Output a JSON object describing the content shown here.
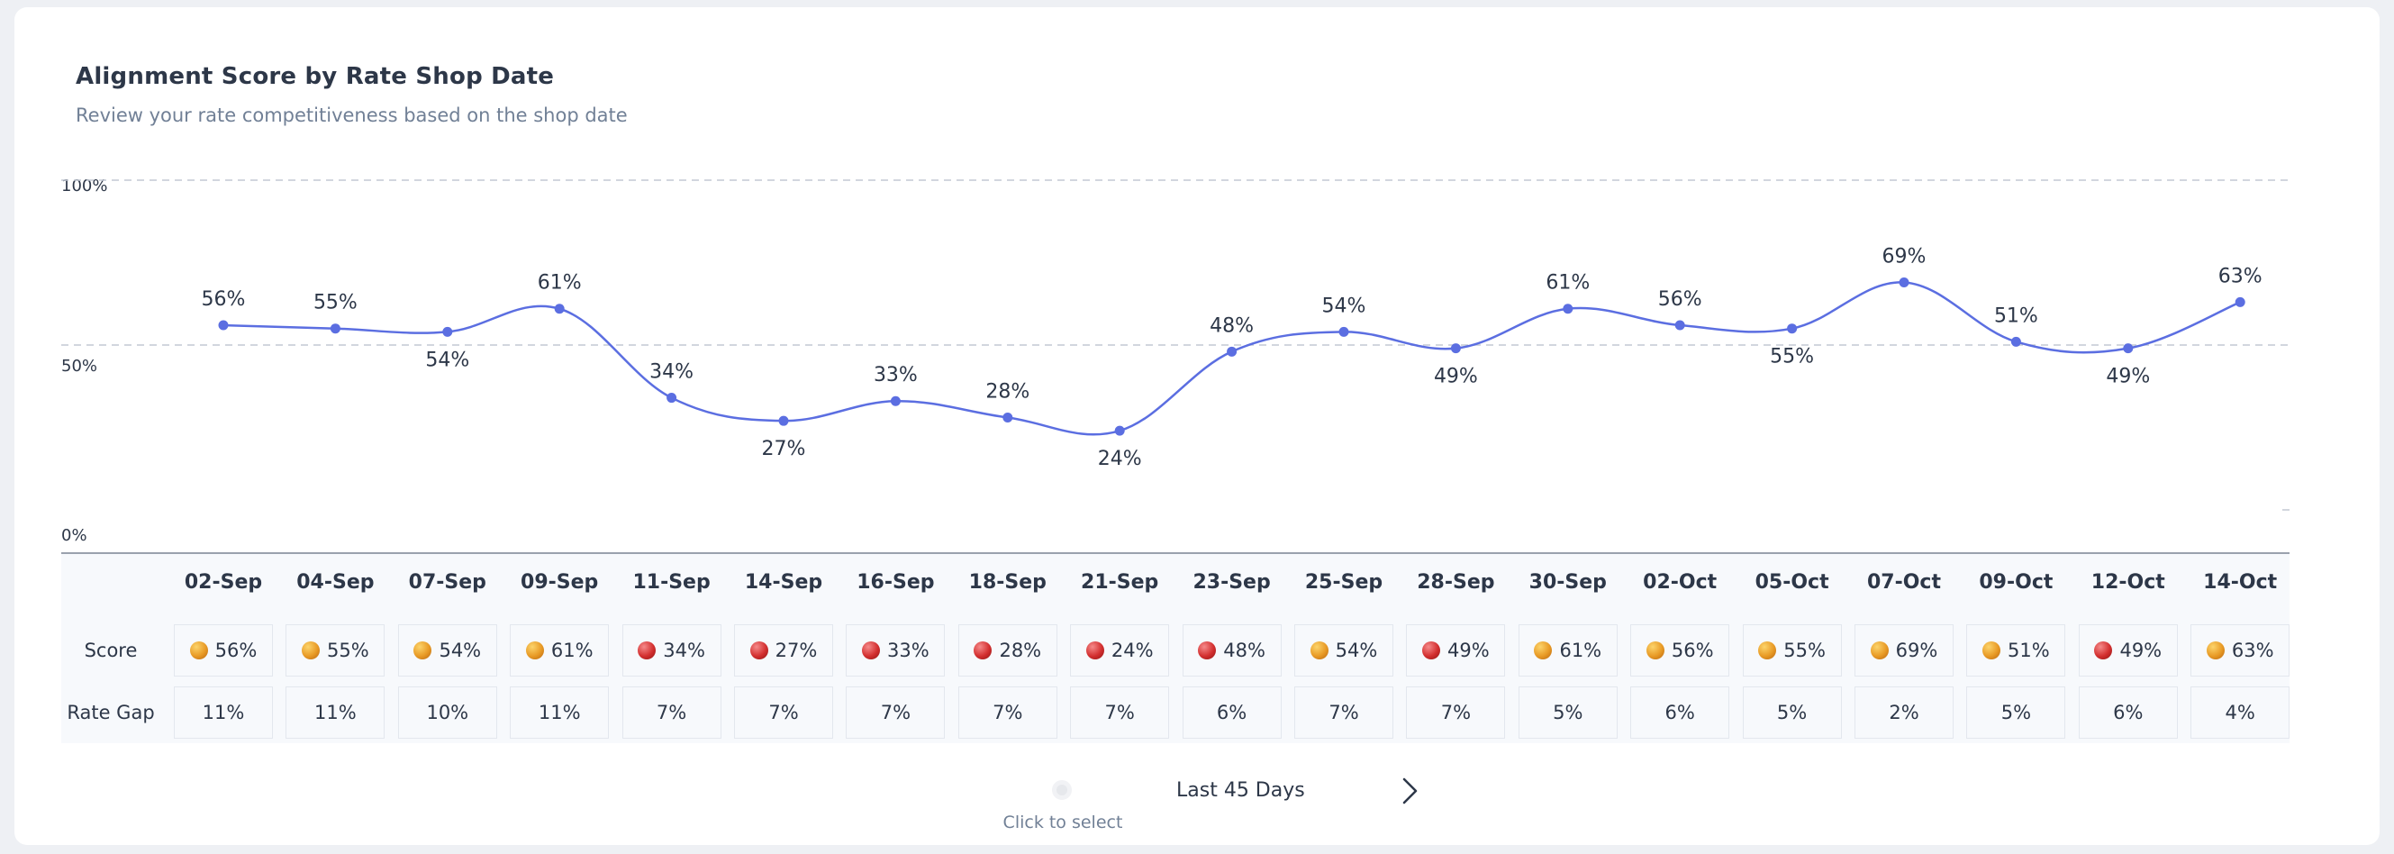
{
  "card": {
    "title": "Alignment Score by Rate Shop Date",
    "subtitle": "Review your rate competitiveness based on the shop date"
  },
  "chart_data": {
    "type": "line",
    "title": "Alignment Score by Rate Shop Date",
    "subtitle": "Review your rate competitiveness based on the shop date",
    "xlabel": "",
    "ylabel": "",
    "ylim": [
      0,
      100
    ],
    "yticks": [
      "100%",
      "50%",
      "0%"
    ],
    "grid": "dashed horizontal at 100% and 50%",
    "categories": [
      "02-Sep",
      "04-Sep",
      "07-Sep",
      "09-Sep",
      "11-Sep",
      "14-Sep",
      "16-Sep",
      "18-Sep",
      "21-Sep",
      "23-Sep",
      "25-Sep",
      "28-Sep",
      "30-Sep",
      "02-Oct",
      "05-Oct",
      "07-Oct",
      "09-Oct",
      "12-Oct",
      "14-Oct"
    ],
    "series": [
      {
        "name": "Score",
        "values": [
          56,
          55,
          54,
          61,
          34,
          27,
          33,
          28,
          24,
          48,
          54,
          49,
          61,
          56,
          55,
          69,
          51,
          49,
          63
        ]
      }
    ],
    "data_labels": [
      "56%",
      "55%",
      "54%",
      "61%",
      "34%",
      "27%",
      "33%",
      "28%",
      "24%",
      "48%",
      "54%",
      "49%",
      "61%",
      "56%",
      "55%",
      "69%",
      "51%",
      "49%",
      "63%"
    ],
    "label_position": [
      "above",
      "above",
      "below",
      "above",
      "above",
      "below",
      "above",
      "above",
      "below",
      "above",
      "above",
      "below",
      "above",
      "above",
      "below",
      "above",
      "above",
      "below",
      "above"
    ]
  },
  "table": {
    "row_labels": {
      "score": "Score",
      "rate_gap": "Rate Gap"
    },
    "dates": [
      "02-Sep",
      "04-Sep",
      "07-Sep",
      "09-Sep",
      "11-Sep",
      "14-Sep",
      "16-Sep",
      "18-Sep",
      "21-Sep",
      "23-Sep",
      "25-Sep",
      "28-Sep",
      "30-Sep",
      "02-Oct",
      "05-Oct",
      "07-Oct",
      "09-Oct",
      "12-Oct",
      "14-Oct"
    ],
    "scores": [
      "56%",
      "55%",
      "54%",
      "61%",
      "34%",
      "27%",
      "33%",
      "28%",
      "24%",
      "48%",
      "54%",
      "49%",
      "61%",
      "56%",
      "55%",
      "69%",
      "51%",
      "49%",
      "63%"
    ],
    "score_status": [
      "orange",
      "orange",
      "orange",
      "orange",
      "red",
      "red",
      "red",
      "red",
      "red",
      "red",
      "orange",
      "red",
      "orange",
      "orange",
      "orange",
      "orange",
      "orange",
      "red",
      "orange"
    ],
    "rate_gaps": [
      "11%",
      "11%",
      "10%",
      "11%",
      "7%",
      "7%",
      "7%",
      "7%",
      "7%",
      "6%",
      "7%",
      "7%",
      "5%",
      "6%",
      "5%",
      "2%",
      "5%",
      "6%",
      "4%"
    ]
  },
  "controls": {
    "range_label": "Last 45 Days",
    "select_hint": "Click to select",
    "next_icon": "chevron-right-icon"
  },
  "colors": {
    "line": "#5b6ee1",
    "grid": "#c3c9d3",
    "status_orange": "#e89a25",
    "status_red": "#d32f2f"
  }
}
